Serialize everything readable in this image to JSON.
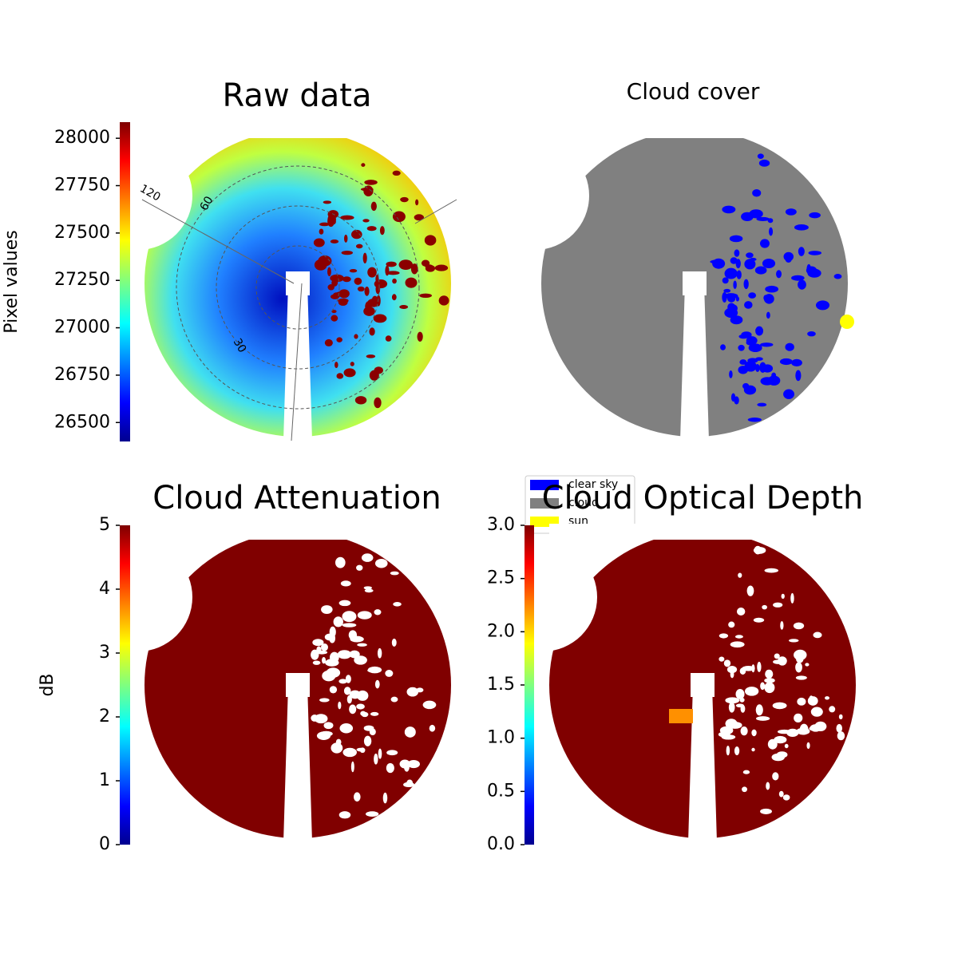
{
  "chart_data": [
    {
      "type": "image",
      "title": "Raw data",
      "colormap": "jet",
      "colorbar": {
        "label": "Pixel values",
        "lim": [
          26400,
          28085
        ],
        "ticks": [
          26500,
          26750,
          27000,
          27250,
          27500,
          27750,
          28000
        ]
      },
      "annotations": [
        "120",
        "60",
        "30"
      ]
    },
    {
      "type": "image",
      "title": "Cloud cover",
      "legend": [
        {
          "name": "clear sky",
          "color": "#0000ff"
        },
        {
          "name": "cloud",
          "color": "#808080"
        },
        {
          "name": "sun",
          "color": "#ffff00"
        }
      ]
    },
    {
      "type": "image",
      "title": "Cloud Attenuation",
      "colormap": "jet",
      "colorbar": {
        "label": "dB",
        "lim": [
          0,
          5
        ],
        "ticks": [
          0,
          1,
          2,
          3,
          4,
          5
        ]
      }
    },
    {
      "type": "image",
      "title": "Cloud Optical Depth",
      "colormap": "jet",
      "colorbar": {
        "lim": [
          0,
          3
        ],
        "ticks": [
          {
            "value": 0,
            "label": "0.0"
          },
          {
            "value": 0.5,
            "label": "0.5"
          },
          {
            "value": 1,
            "label": "1.0"
          },
          {
            "value": 1.5,
            "label": "1.5"
          },
          {
            "value": 2,
            "label": "2.0"
          },
          {
            "value": 2.5,
            "label": "2.5"
          },
          {
            "value": 3,
            "label": "3.0"
          }
        ]
      }
    }
  ]
}
